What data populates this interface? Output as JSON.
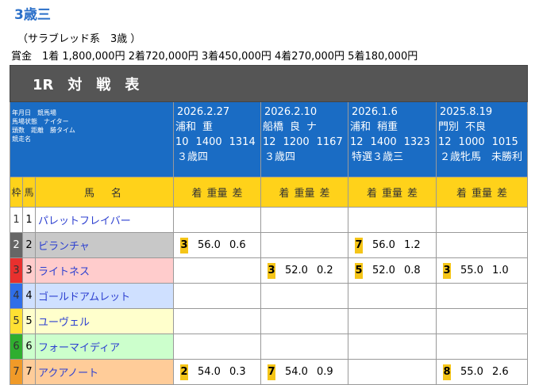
{
  "title": "3歳三",
  "subtitle": "（サラブレッド系　3歳 ）",
  "prize": "賞金　1着 1,800,000円 2着720,000円 3着450,000円 4着270,000円 5着180,000円",
  "table": {
    "heading": "1R　対　戦　表",
    "info_labels": [
      "年月日　競馬場",
      "馬場状態　ナイター",
      "頭数　距離　勝タイム",
      "競走名"
    ],
    "col_headers": [
      "枠",
      "馬",
      "馬　名"
    ],
    "result_labels": [
      "着",
      "重量",
      "差"
    ],
    "races": [
      {
        "date": "2026.2.27",
        "track": "浦和",
        "cond": "重",
        "night": null,
        "heads": "10",
        "dist": "1400",
        "time": "1314",
        "name": "３歳四"
      },
      {
        "date": "2026.2.10",
        "track": "船橋",
        "cond": "良",
        "night": "ナ",
        "heads": "12",
        "dist": "1200",
        "time": "1167",
        "name": "３歳四"
      },
      {
        "date": "2026.1.6",
        "track": "浦和",
        "cond": "稍重",
        "night": null,
        "heads": "12",
        "dist": "1400",
        "time": "1323",
        "name": "特選３歳三"
      },
      {
        "date": "2025.8.19",
        "track": "門別",
        "cond": "不良",
        "night": null,
        "heads": "12",
        "dist": "1000",
        "time": "1015",
        "name": "２歳牝馬　未勝利"
      }
    ],
    "horses": [
      {
        "waku": "1",
        "num": "1",
        "name": "パレットフレイバー",
        "results": [
          null,
          null,
          null,
          null
        ]
      },
      {
        "waku": "2",
        "num": "2",
        "name": "ビランチャ",
        "results": [
          {
            "pos": "3",
            "weight": "56.0",
            "margin": "0.6"
          },
          null,
          {
            "pos": "7",
            "weight": "56.0",
            "margin": "1.2"
          },
          null
        ]
      },
      {
        "waku": "3",
        "num": "3",
        "name": "ライトネス",
        "results": [
          null,
          {
            "pos": "3",
            "weight": "52.0",
            "margin": "0.2"
          },
          {
            "pos": "5",
            "weight": "52.0",
            "margin": "0.8"
          },
          {
            "pos": "3",
            "weight": "55.0",
            "margin": "1.0"
          }
        ]
      },
      {
        "waku": "4",
        "num": "4",
        "name": "ゴールドアムレット",
        "results": [
          null,
          null,
          null,
          null
        ]
      },
      {
        "waku": "5",
        "num": "5",
        "name": "ユーヴェル",
        "results": [
          null,
          null,
          null,
          null
        ]
      },
      {
        "waku": "6",
        "num": "6",
        "name": "フォーマイディア",
        "results": [
          null,
          null,
          null,
          null
        ]
      },
      {
        "waku": "7",
        "num": "7",
        "name": "アクアノート",
        "results": [
          {
            "pos": "2",
            "weight": "54.0",
            "margin": "0.3"
          },
          {
            "pos": "7",
            "weight": "54.0",
            "margin": "0.9"
          },
          null,
          {
            "pos": "8",
            "weight": "55.0",
            "margin": "2.6"
          }
        ]
      }
    ]
  }
}
